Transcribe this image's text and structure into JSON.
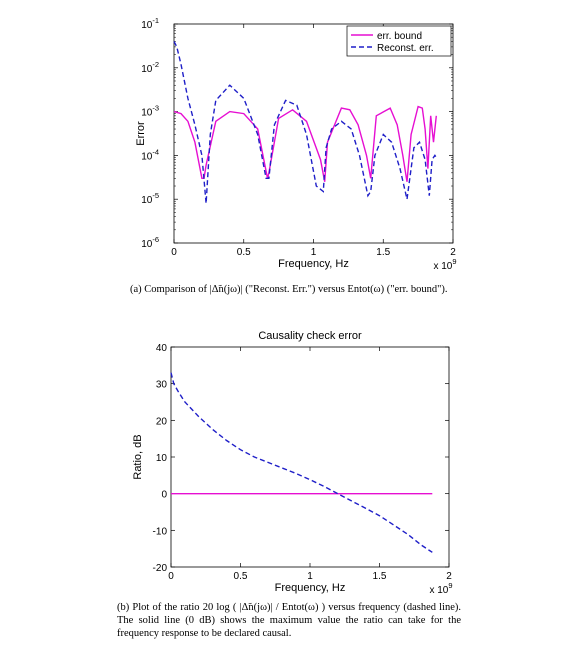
{
  "chart_data": [
    {
      "type": "line",
      "title": "",
      "xlabel": "Frequency, Hz",
      "ylabel": "Error",
      "x_multiplier": "x 10^9",
      "yscale": "log",
      "xlim": [
        0,
        2
      ],
      "ylim": [
        1e-06,
        0.1
      ],
      "xticks": [
        "0",
        "0.5",
        "1",
        "1.5",
        "2"
      ],
      "yticks": [
        "10^-6",
        "10^-5",
        "10^-4",
        "10^-3",
        "10^-2",
        "10^-1"
      ],
      "legend": "top-right",
      "series": [
        {
          "name": "err. bound",
          "color": "#e60fd2",
          "style": "solid",
          "x": [
            0,
            0.05,
            0.1,
            0.15,
            0.2,
            0.215,
            0.23,
            0.3,
            0.4,
            0.5,
            0.6,
            0.67,
            0.68,
            0.75,
            0.85,
            0.95,
            1.05,
            1.08,
            1.1,
            1.2,
            1.26,
            1.32,
            1.38,
            1.41,
            1.45,
            1.55,
            1.6,
            1.64,
            1.67,
            1.7,
            1.75,
            1.78,
            1.8,
            1.82,
            1.84,
            1.86,
            1.88
          ],
          "y": [
            0.001,
            0.0009,
            0.0006,
            0.0002,
            3e-05,
            3e-05,
            6e-05,
            0.0006,
            0.001,
            0.0009,
            0.0004,
            3e-05,
            4e-05,
            0.0007,
            0.0011,
            0.0006,
            8e-05,
            2.5e-05,
            0.0002,
            0.0012,
            0.0011,
            0.0005,
            0.0001,
            3e-05,
            0.0008,
            0.0012,
            0.0005,
            0.0001,
            2.5e-05,
            0.0003,
            0.0013,
            0.0012,
            0.0004,
            5e-05,
            0.0008,
            0.0002,
            0.0008
          ]
        },
        {
          "name": "Reconst. err.",
          "color": "#1f1fc8",
          "style": "dashed",
          "x": [
            0,
            0.02,
            0.05,
            0.1,
            0.15,
            0.2,
            0.23,
            0.26,
            0.3,
            0.4,
            0.5,
            0.6,
            0.66,
            0.68,
            0.72,
            0.8,
            0.88,
            0.95,
            1.02,
            1.07,
            1.09,
            1.13,
            1.2,
            1.27,
            1.33,
            1.39,
            1.41,
            1.44,
            1.5,
            1.56,
            1.62,
            1.67,
            1.69,
            1.72,
            1.76,
            1.8,
            1.83,
            1.85,
            1.87,
            1.88
          ],
          "y": [
            0.04,
            0.03,
            0.012,
            0.002,
            0.0005,
            0.0001,
            8e-06,
            0.0003,
            0.0018,
            0.004,
            0.002,
            0.0003,
            3e-05,
            3e-05,
            0.0005,
            0.0018,
            0.0014,
            0.0003,
            2e-05,
            1.5e-05,
            0.00015,
            0.0004,
            0.0006,
            0.0004,
            0.0001,
            1.2e-05,
            1.5e-05,
            0.0001,
            0.0003,
            0.0002,
            5e-05,
            1e-05,
            3e-05,
            0.00015,
            0.0002,
            8e-05,
            1.2e-05,
            8e-05,
            0.0001,
            9e-05
          ]
        }
      ]
    },
    {
      "type": "line",
      "title": "Causality check error",
      "xlabel": "Frequency, Hz",
      "ylabel": "Ratio, dB",
      "x_multiplier": "x 10^9",
      "xlim": [
        0,
        2
      ],
      "ylim": [
        -20,
        40
      ],
      "xticks": [
        "0",
        "0.5",
        "1",
        "1.5",
        "2"
      ],
      "yticks": [
        "-20",
        "-10",
        "0",
        "10",
        "20",
        "30",
        "40"
      ],
      "series": [
        {
          "color": "#e60fd2",
          "style": "solid",
          "x": [
            0,
            1.88
          ],
          "y": [
            0,
            0
          ]
        },
        {
          "color": "#1f1fc8",
          "style": "dashed",
          "x": [
            0,
            0.02,
            0.05,
            0.1,
            0.2,
            0.3,
            0.4,
            0.5,
            0.6,
            0.7,
            0.8,
            0.9,
            1.0,
            1.1,
            1.2,
            1.3,
            1.4,
            1.5,
            1.6,
            1.7,
            1.8,
            1.86,
            1.88
          ],
          "y": [
            33,
            30,
            28,
            25,
            21,
            17.5,
            14.5,
            12,
            10,
            8.5,
            7,
            5.5,
            3.8,
            2,
            0,
            -2,
            -4,
            -6,
            -8.5,
            -11,
            -14,
            -15.5,
            -16
          ]
        }
      ]
    }
  ],
  "captions": {
    "a": "(a) Comparison of |Δ̃n(jω)| (\"Reconst. Err.\") versus Entot(ω) (\"err. bound\").",
    "b": "(b) Plot of the ratio 20 log ( |Δ̃n(jω)| / Entot(ω) ) versus frequency (dashed line). The solid line (0 dB) shows the maximum value the ratio can take for the frequency response to be declared causal."
  }
}
